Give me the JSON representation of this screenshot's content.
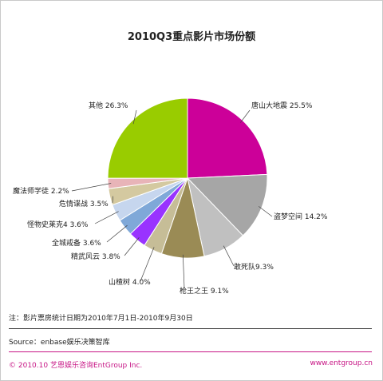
{
  "chart_data": {
    "type": "pie",
    "title": "2010Q3重点影片市场份额",
    "slices": [
      {
        "label": "唐山大地震 25.5%",
        "value": 25.5,
        "color": "#cc0099"
      },
      {
        "label": "盗梦空间 14.2%",
        "value": 14.2,
        "color": "#a6a6a6"
      },
      {
        "label": "敢死队9.3%",
        "value": 9.3,
        "color": "#c0c0c0"
      },
      {
        "label": "枪王之王  9.1%",
        "value": 9.1,
        "color": "#9a8b55"
      },
      {
        "label": "山楂树 4.0%",
        "value": 4.0,
        "color": "#c6bd97"
      },
      {
        "label": "精武风云 3.8%",
        "value": 3.8,
        "color": "#9933ff"
      },
      {
        "label": "全城戒备 3.6%",
        "value": 3.6,
        "color": "#7fa8d8"
      },
      {
        "label": "怪物史莱克4 3.6%",
        "value": 3.6,
        "color": "#c6d6ee"
      },
      {
        "label": "危情谍战 3.5%",
        "value": 3.5,
        "color": "#d4c9a0"
      },
      {
        "label": "魔法师学徒 2.2%",
        "value": 2.2,
        "color": "#e8b4b8"
      },
      {
        "label": "其他 26.3%",
        "value": 26.3,
        "color": "#99cc00"
      }
    ]
  },
  "note": "注：影片票房统计日期为2010年7月1日-2010年9月30日",
  "source": "Source：enbase娱乐决策智库",
  "footer": {
    "copyright": "© 2010.10  艺恩娱乐咨询EntGroup Inc.",
    "website": "www.entgroup.cn"
  }
}
